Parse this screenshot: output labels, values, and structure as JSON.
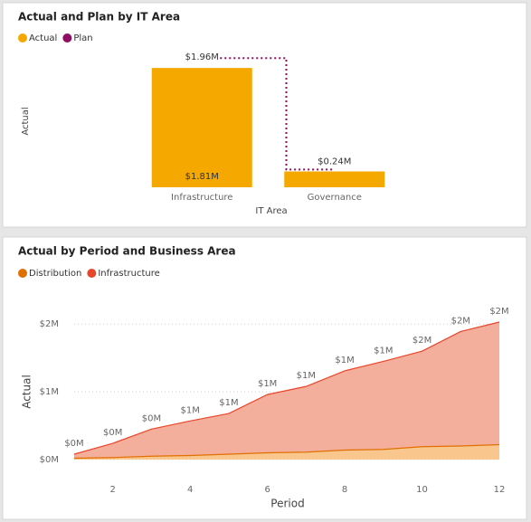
{
  "chart_data": [
    {
      "type": "bar",
      "title": "Actual and Plan by IT Area",
      "x_label": "IT Area",
      "y_label": "Actual",
      "categories": [
        "Infrastructure",
        "Governance"
      ],
      "series": [
        {
          "name": "Actual",
          "color": "#F5A800",
          "values": [
            1.81,
            0.24
          ],
          "value_labels": [
            "$1.81M",
            "$0.24M"
          ]
        },
        {
          "name": "Plan",
          "color": "#8E0E62",
          "type": "line",
          "values": [
            1.96,
            0.27
          ],
          "value_labels": [
            "$1.96M",
            null
          ]
        }
      ],
      "ylim": [
        0,
        2.1
      ]
    },
    {
      "type": "area",
      "title": "Actual by Period and Business Area",
      "x_label": "Period",
      "y_label": "Actual",
      "x": [
        1,
        2,
        3,
        4,
        5,
        6,
        7,
        8,
        9,
        10,
        11,
        12
      ],
      "series": [
        {
          "name": "Distribution",
          "color": "#E07000",
          "fill": "#F9C68E",
          "values": [
            0.02,
            0.03,
            0.05,
            0.06,
            0.08,
            0.1,
            0.11,
            0.14,
            0.15,
            0.19,
            0.2,
            0.22
          ]
        },
        {
          "name": "Infrastructure",
          "color": "#E8462A",
          "fill": "#F4AE9C",
          "values": [
            0.08,
            0.24,
            0.45,
            0.57,
            0.68,
            0.96,
            1.08,
            1.31,
            1.45,
            1.6,
            1.89,
            2.03
          ],
          "value_labels": [
            "$0M",
            "$0M",
            "$0M",
            "$1M",
            "$1M",
            "$1M",
            "$1M",
            "$1M",
            "$1M",
            "$2M",
            "$2M",
            "$2M"
          ]
        }
      ],
      "xlim": [
        1,
        12
      ],
      "xticks": [
        2,
        4,
        6,
        8,
        10,
        12
      ],
      "ylim": [
        0,
        2.15
      ],
      "yticks": [
        {
          "value": 0,
          "label": "$0M"
        },
        {
          "value": 1,
          "label": "$1M"
        },
        {
          "value": 2,
          "label": "$2M"
        }
      ],
      "grid": true
    }
  ]
}
